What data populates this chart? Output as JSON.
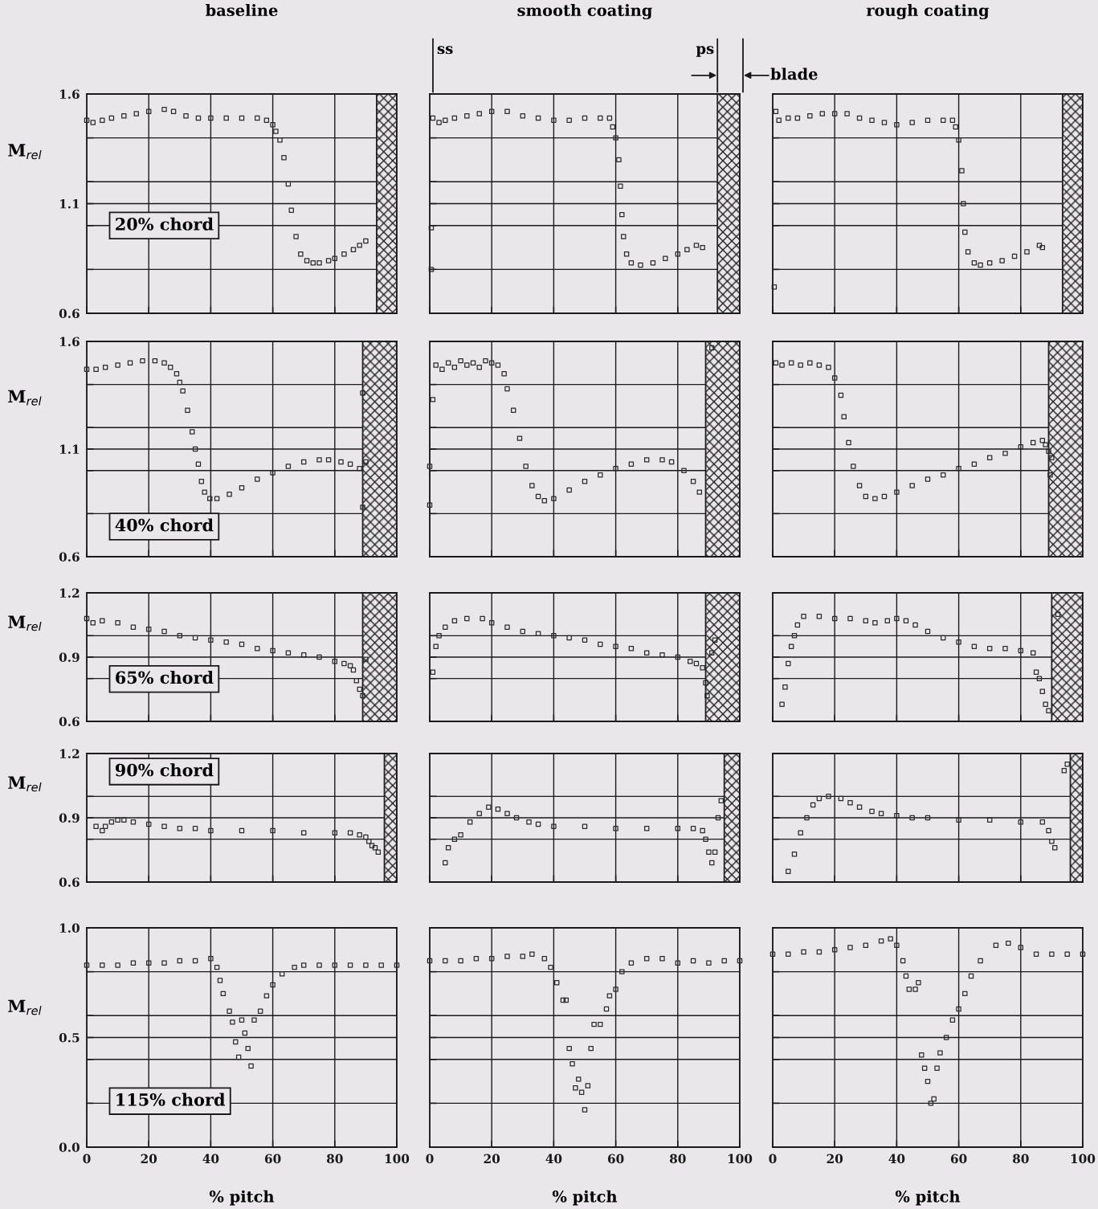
{
  "chart_data": [
    {
      "type": "scatter",
      "title": "baseline",
      "ylabel": "M$_{rel}$",
      "annotations": [
        "20% chord"
      ],
      "color": "#2a2a2a",
      "marker": "square",
      "grid": true,
      "tick_labels": "y",
      "xlim": [
        0,
        100
      ],
      "xticks": [
        0,
        20,
        40,
        60,
        80,
        100
      ],
      "ylim": [
        0.6,
        1.6
      ],
      "yticks": [
        0.6,
        {
          "value": 0.8,
          "label": null
        },
        {
          "value": 1.0,
          "label": null
        },
        1.1,
        {
          "value": 1.2,
          "label": null
        },
        {
          "value": 1.4,
          "label": null
        },
        1.6
      ],
      "bands": [
        {
          "axis": "x",
          "from": 93.5,
          "to": 100,
          "color": "#222222"
        }
      ],
      "x": [
        0,
        2,
        5,
        8,
        12,
        16,
        20,
        25,
        28,
        32,
        36,
        40,
        45,
        50,
        55,
        58,
        60,
        61,
        62.3,
        63.6,
        65,
        66,
        67.5,
        69,
        71,
        73,
        75,
        78,
        80,
        83,
        86,
        88,
        90
      ],
      "values": [
        1.48,
        1.47,
        1.48,
        1.49,
        1.5,
        1.51,
        1.52,
        1.53,
        1.52,
        1.5,
        1.49,
        1.49,
        1.49,
        1.49,
        1.49,
        1.48,
        1.46,
        1.43,
        1.39,
        1.31,
        1.19,
        1.07,
        0.95,
        0.87,
        0.84,
        0.83,
        0.83,
        0.84,
        0.85,
        0.87,
        0.89,
        0.91,
        0.93
      ]
    },
    {
      "type": "scatter",
      "title": "smooth coating",
      "annotations": [
        "ss",
        "ps",
        "blade"
      ],
      "color": "#2a2a2a",
      "marker": "square",
      "grid": true,
      "tick_labels": false,
      "xlim": [
        0,
        100
      ],
      "xticks": [
        0,
        20,
        40,
        60,
        80,
        100
      ],
      "ylim": [
        0.6,
        1.6
      ],
      "yticks": [
        0.6,
        {
          "value": 0.8,
          "label": null
        },
        {
          "value": 1.0,
          "label": null
        },
        1.1,
        {
          "value": 1.2,
          "label": null
        },
        {
          "value": 1.4,
          "label": null
        },
        1.6
      ],
      "bands": [
        {
          "axis": "x",
          "from": 92.8,
          "to": 100,
          "color": "#222222"
        }
      ],
      "x": [
        0.5,
        0.5,
        1,
        3,
        5,
        8,
        12,
        16,
        20,
        25,
        30,
        35,
        40,
        45,
        50,
        55,
        58,
        59,
        60,
        61,
        61.5,
        62,
        62.5,
        63.5,
        65,
        68,
        72,
        76,
        80,
        83,
        86,
        88
      ],
      "values": [
        0.99,
        0.8,
        1.49,
        1.47,
        1.48,
        1.49,
        1.5,
        1.51,
        1.52,
        1.52,
        1.5,
        1.49,
        1.48,
        1.48,
        1.49,
        1.49,
        1.49,
        1.45,
        1.4,
        1.3,
        1.18,
        1.05,
        0.95,
        0.87,
        0.83,
        0.82,
        0.83,
        0.85,
        0.87,
        0.89,
        0.91,
        0.9
      ]
    },
    {
      "type": "scatter",
      "title": "rough coating",
      "color": "#2a2a2a",
      "marker": "square",
      "grid": true,
      "tick_labels": false,
      "xlim": [
        0,
        100
      ],
      "xticks": [
        0,
        20,
        40,
        60,
        80,
        100
      ],
      "ylim": [
        0.6,
        1.6
      ],
      "yticks": [
        0.6,
        {
          "value": 0.8,
          "label": null
        },
        {
          "value": 1.0,
          "label": null
        },
        1.1,
        {
          "value": 1.2,
          "label": null
        },
        {
          "value": 1.4,
          "label": null
        },
        1.6
      ],
      "bands": [
        {
          "axis": "x",
          "from": 93.5,
          "to": 100,
          "color": "#222222"
        }
      ],
      "x": [
        0.5,
        1,
        2,
        5,
        8,
        12,
        16,
        20,
        24,
        28,
        32,
        36,
        40,
        45,
        50,
        55,
        58,
        59,
        60,
        61,
        61.5,
        62,
        63,
        65,
        67,
        70,
        74,
        78,
        82,
        86,
        87
      ],
      "values": [
        0.72,
        1.52,
        1.48,
        1.49,
        1.49,
        1.5,
        1.51,
        1.51,
        1.51,
        1.49,
        1.48,
        1.47,
        1.46,
        1.47,
        1.48,
        1.48,
        1.48,
        1.45,
        1.39,
        1.25,
        1.1,
        0.97,
        0.88,
        0.83,
        0.82,
        0.83,
        0.84,
        0.86,
        0.88,
        0.91,
        0.9
      ]
    },
    {
      "type": "scatter",
      "ylabel": "M$_{rel}$",
      "annotations": [
        "40% chord"
      ],
      "color": "#2a2a2a",
      "marker": "square",
      "grid": true,
      "tick_labels": "y",
      "xlim": [
        0,
        100
      ],
      "xticks": [
        0,
        20,
        40,
        60,
        80,
        100
      ],
      "ylim": [
        0.6,
        1.6
      ],
      "yticks": [
        0.6,
        {
          "value": 0.8,
          "label": null
        },
        {
          "value": 1.0,
          "label": null
        },
        1.1,
        {
          "value": 1.2,
          "label": null
        },
        {
          "value": 1.4,
          "label": null
        },
        1.6
      ],
      "bands": [
        {
          "axis": "x",
          "from": 89,
          "to": 100,
          "color": "#222222"
        }
      ],
      "x": [
        0,
        3,
        6,
        10,
        14,
        18,
        22,
        25,
        27,
        29,
        30,
        31,
        32.5,
        34,
        35,
        36,
        37,
        38,
        39.7,
        42,
        46,
        50,
        55,
        60,
        65,
        70,
        75,
        78,
        82,
        85,
        88,
        89,
        89,
        90
      ],
      "values": [
        1.47,
        1.47,
        1.48,
        1.49,
        1.5,
        1.51,
        1.51,
        1.5,
        1.48,
        1.45,
        1.41,
        1.37,
        1.28,
        1.18,
        1.1,
        1.03,
        0.95,
        0.9,
        0.87,
        0.87,
        0.89,
        0.92,
        0.96,
        0.99,
        1.02,
        1.04,
        1.05,
        1.05,
        1.04,
        1.03,
        1.01,
        1.36,
        0.83,
        1.04
      ]
    },
    {
      "type": "scatter",
      "color": "#2a2a2a",
      "marker": "square",
      "grid": true,
      "tick_labels": false,
      "xlim": [
        0,
        100
      ],
      "xticks": [
        0,
        20,
        40,
        60,
        80,
        100
      ],
      "ylim": [
        0.6,
        1.6
      ],
      "yticks": [
        0.6,
        {
          "value": 0.8,
          "label": null
        },
        {
          "value": 1.0,
          "label": null
        },
        1.1,
        {
          "value": 1.2,
          "label": null
        },
        {
          "value": 1.4,
          "label": null
        },
        1.6
      ],
      "bands": [
        {
          "axis": "x",
          "from": 89,
          "to": 100,
          "color": "#222222"
        }
      ],
      "x": [
        0,
        0,
        1,
        2,
        4,
        6,
        8,
        10,
        12,
        14,
        16,
        18,
        20,
        22,
        24,
        25,
        27,
        29,
        31,
        33,
        35,
        37,
        40,
        45,
        50,
        55,
        60,
        65,
        70,
        75,
        78,
        82,
        85,
        87,
        91
      ],
      "values": [
        0.84,
        1.02,
        1.33,
        1.49,
        1.47,
        1.5,
        1.48,
        1.51,
        1.49,
        1.5,
        1.48,
        1.51,
        1.5,
        1.49,
        1.45,
        1.38,
        1.28,
        1.15,
        1.02,
        0.93,
        0.88,
        0.86,
        0.87,
        0.91,
        0.95,
        0.98,
        1.01,
        1.03,
        1.05,
        1.05,
        1.04,
        1.0,
        0.95,
        0.9,
        1.57
      ]
    },
    {
      "type": "scatter",
      "color": "#2a2a2a",
      "marker": "square",
      "grid": true,
      "tick_labels": false,
      "xlim": [
        0,
        100
      ],
      "xticks": [
        0,
        20,
        40,
        60,
        80,
        100
      ],
      "ylim": [
        0.6,
        1.6
      ],
      "yticks": [
        0.6,
        {
          "value": 0.8,
          "label": null
        },
        {
          "value": 1.0,
          "label": null
        },
        1.1,
        {
          "value": 1.2,
          "label": null
        },
        {
          "value": 1.4,
          "label": null
        },
        1.6
      ],
      "bands": [
        {
          "axis": "x",
          "from": 89,
          "to": 100,
          "color": "#222222"
        }
      ],
      "x": [
        1,
        3,
        6,
        9,
        12,
        15,
        18,
        20,
        22,
        23,
        24.5,
        26,
        28,
        30,
        33,
        36,
        40,
        45,
        50,
        55,
        60,
        65,
        70,
        75,
        80,
        84,
        87,
        88,
        89,
        89.5,
        90
      ],
      "values": [
        1.5,
        1.49,
        1.5,
        1.49,
        1.5,
        1.49,
        1.48,
        1.43,
        1.35,
        1.25,
        1.13,
        1.02,
        0.93,
        0.88,
        0.87,
        0.88,
        0.9,
        0.93,
        0.96,
        0.98,
        1.01,
        1.03,
        1.06,
        1.08,
        1.11,
        1.13,
        1.14,
        1.12,
        1.09,
        0.98,
        1.06
      ]
    },
    {
      "type": "scatter",
      "ylabel": "M$_{rel}$",
      "annotations": [
        "65% chord"
      ],
      "color": "#2a2a2a",
      "marker": "square",
      "grid": true,
      "tick_labels": "y",
      "xlim": [
        0,
        100
      ],
      "xticks": [
        0,
        20,
        40,
        60,
        80,
        100
      ],
      "ylim": [
        0.6,
        1.2
      ],
      "yticks": [
        0.6,
        {
          "value": 0.8,
          "label": null
        },
        0.9,
        {
          "value": 1.0,
          "label": null
        },
        1.2
      ],
      "bands": [
        {
          "axis": "x",
          "from": 89,
          "to": 100,
          "color": "#222222"
        }
      ],
      "x": [
        0,
        2,
        5,
        10,
        15,
        20,
        25,
        30,
        35,
        40,
        45,
        50,
        55,
        60,
        65,
        70,
        75,
        80,
        83,
        85,
        86,
        87,
        88,
        89,
        90
      ],
      "values": [
        1.08,
        1.06,
        1.07,
        1.06,
        1.04,
        1.03,
        1.02,
        1.0,
        0.99,
        0.98,
        0.97,
        0.96,
        0.94,
        0.93,
        0.92,
        0.91,
        0.9,
        0.88,
        0.87,
        0.86,
        0.84,
        0.79,
        0.75,
        0.72,
        0.89
      ]
    },
    {
      "type": "scatter",
      "color": "#2a2a2a",
      "marker": "square",
      "grid": true,
      "tick_labels": false,
      "xlim": [
        0,
        100
      ],
      "xticks": [
        0,
        20,
        40,
        60,
        80,
        100
      ],
      "ylim": [
        0.6,
        1.2
      ],
      "yticks": [
        0.6,
        {
          "value": 0.8,
          "label": null
        },
        0.9,
        {
          "value": 1.0,
          "label": null
        },
        1.2
      ],
      "bands": [
        {
          "axis": "x",
          "from": 89,
          "to": 100,
          "color": "#222222"
        }
      ],
      "x": [
        1,
        2,
        3,
        5,
        8,
        12,
        17,
        20,
        25,
        30,
        35,
        40,
        45,
        50,
        55,
        60,
        65,
        70,
        75,
        80,
        84,
        86,
        88,
        89,
        89.5,
        91,
        92
      ],
      "values": [
        0.83,
        0.95,
        1.0,
        1.04,
        1.07,
        1.08,
        1.08,
        1.06,
        1.04,
        1.02,
        1.01,
        1.0,
        0.99,
        0.98,
        0.96,
        0.95,
        0.94,
        0.92,
        0.91,
        0.9,
        0.88,
        0.87,
        0.85,
        0.78,
        0.72,
        0.92,
        0.98
      ]
    },
    {
      "type": "scatter",
      "color": "#2a2a2a",
      "marker": "square",
      "grid": true,
      "tick_labels": false,
      "xlim": [
        0,
        100
      ],
      "xticks": [
        0,
        20,
        40,
        60,
        80,
        100
      ],
      "ylim": [
        0.6,
        1.2
      ],
      "yticks": [
        0.6,
        {
          "value": 0.8,
          "label": null
        },
        0.9,
        {
          "value": 1.0,
          "label": null
        },
        1.2
      ],
      "bands": [
        {
          "axis": "x",
          "from": 90,
          "to": 100,
          "color": "#222222"
        }
      ],
      "x": [
        3,
        4,
        5,
        6,
        7,
        8,
        10,
        15,
        20,
        25,
        30,
        33,
        37,
        40,
        43,
        46,
        50,
        55,
        60,
        65,
        70,
        75,
        80,
        84,
        85,
        86,
        87,
        88,
        89,
        92
      ],
      "values": [
        0.68,
        0.76,
        0.87,
        0.95,
        1.0,
        1.05,
        1.09,
        1.09,
        1.08,
        1.08,
        1.07,
        1.06,
        1.07,
        1.08,
        1.07,
        1.05,
        1.02,
        0.99,
        0.97,
        0.95,
        0.94,
        0.94,
        0.93,
        0.92,
        0.83,
        0.8,
        0.74,
        0.68,
        0.65,
        1.1
      ]
    },
    {
      "type": "scatter",
      "ylabel": "M$_{rel}$",
      "annotations": [
        "90% chord"
      ],
      "color": "#2a2a2a",
      "marker": "square",
      "grid": true,
      "tick_labels": "y",
      "xlim": [
        0,
        100
      ],
      "xticks": [
        0,
        20,
        40,
        60,
        80,
        100
      ],
      "ylim": [
        0.6,
        1.2
      ],
      "yticks": [
        0.6,
        {
          "value": 0.8,
          "label": null
        },
        0.9,
        {
          "value": 1.0,
          "label": null
        },
        1.2
      ],
      "bands": [
        {
          "axis": "x",
          "from": 96,
          "to": 100,
          "color": "#222222"
        }
      ],
      "x": [
        3,
        5,
        6,
        8,
        10,
        12,
        15,
        20,
        25,
        30,
        35,
        40,
        50,
        60,
        70,
        80,
        85,
        88,
        90,
        91,
        92,
        93,
        94
      ],
      "values": [
        0.86,
        0.84,
        0.86,
        0.88,
        0.89,
        0.89,
        0.88,
        0.87,
        0.86,
        0.85,
        0.85,
        0.84,
        0.84,
        0.84,
        0.83,
        0.83,
        0.83,
        0.82,
        0.81,
        0.79,
        0.77,
        0.76,
        0.74
      ]
    },
    {
      "type": "scatter",
      "color": "#2a2a2a",
      "marker": "square",
      "grid": true,
      "tick_labels": false,
      "xlim": [
        0,
        100
      ],
      "xticks": [
        0,
        20,
        40,
        60,
        80,
        100
      ],
      "ylim": [
        0.6,
        1.2
      ],
      "yticks": [
        0.6,
        {
          "value": 0.8,
          "label": null
        },
        0.9,
        {
          "value": 1.0,
          "label": null
        },
        1.2
      ],
      "bands": [
        {
          "axis": "x",
          "from": 95,
          "to": 100,
          "color": "#222222"
        }
      ],
      "x": [
        5,
        6,
        8,
        10,
        13,
        16,
        19,
        22,
        25,
        28,
        32,
        35,
        40,
        50,
        60,
        70,
        80,
        85,
        88,
        89,
        90,
        91,
        92,
        93,
        94
      ],
      "values": [
        0.69,
        0.76,
        0.8,
        0.82,
        0.88,
        0.92,
        0.95,
        0.94,
        0.92,
        0.9,
        0.88,
        0.87,
        0.86,
        0.86,
        0.85,
        0.85,
        0.85,
        0.85,
        0.84,
        0.8,
        0.74,
        0.69,
        0.74,
        0.9,
        0.98
      ]
    },
    {
      "type": "scatter",
      "color": "#2a2a2a",
      "marker": "square",
      "grid": true,
      "tick_labels": false,
      "xlim": [
        0,
        100
      ],
      "xticks": [
        0,
        20,
        40,
        60,
        80,
        100
      ],
      "ylim": [
        0.6,
        1.2
      ],
      "yticks": [
        0.6,
        {
          "value": 0.8,
          "label": null
        },
        0.9,
        {
          "value": 1.0,
          "label": null
        },
        1.2
      ],
      "bands": [
        {
          "axis": "x",
          "from": 96,
          "to": 100,
          "color": "#222222"
        }
      ],
      "x": [
        5,
        7,
        9,
        11,
        13,
        15,
        18,
        22,
        25,
        28,
        32,
        35,
        40,
        45,
        50,
        60,
        70,
        80,
        87,
        89,
        90,
        91,
        94,
        95
      ],
      "values": [
        0.65,
        0.73,
        0.83,
        0.9,
        0.96,
        0.99,
        1.0,
        0.99,
        0.97,
        0.95,
        0.93,
        0.92,
        0.91,
        0.9,
        0.9,
        0.89,
        0.89,
        0.88,
        0.88,
        0.84,
        0.79,
        0.76,
        1.12,
        1.15
      ]
    },
    {
      "type": "scatter",
      "ylabel": "M$_{rel}$",
      "xlabel": "% pitch",
      "annotations": [
        "115% chord"
      ],
      "color": "#2a2a2a",
      "marker": "square",
      "grid": true,
      "xlim": [
        0,
        100
      ],
      "xticks": [
        0,
        20,
        40,
        60,
        80,
        100
      ],
      "ylim": [
        0.0,
        1.0
      ],
      "yticks": [
        {
          "value": 0.0,
          "label": "0.0"
        },
        {
          "value": 0.2,
          "label": null
        },
        {
          "value": 0.4,
          "label": null
        },
        0.5,
        {
          "value": 0.6,
          "label": null
        },
        {
          "value": 0.8,
          "label": null
        },
        {
          "value": 1.0,
          "label": "1.0"
        }
      ],
      "x": [
        0,
        5,
        10,
        15,
        20,
        25,
        30,
        35,
        40,
        42,
        43,
        44,
        46,
        47,
        48,
        49,
        50,
        51,
        52,
        53,
        54,
        56,
        58,
        60,
        63,
        67,
        70,
        75,
        80,
        85,
        90,
        95,
        100
      ],
      "values": [
        0.83,
        0.83,
        0.83,
        0.84,
        0.84,
        0.84,
        0.85,
        0.85,
        0.86,
        0.82,
        0.76,
        0.7,
        0.62,
        0.57,
        0.48,
        0.41,
        0.58,
        0.52,
        0.45,
        0.37,
        0.58,
        0.62,
        0.69,
        0.74,
        0.79,
        0.82,
        0.83,
        0.83,
        0.83,
        0.83,
        0.83,
        0.83,
        0.83
      ]
    },
    {
      "type": "scatter",
      "xlabel": "% pitch",
      "color": "#2a2a2a",
      "marker": "square",
      "grid": true,
      "tick_labels": "x",
      "xlim": [
        0,
        100
      ],
      "xticks": [
        0,
        20,
        40,
        60,
        80,
        100
      ],
      "ylim": [
        0.0,
        1.0
      ],
      "yticks": [
        0.0,
        {
          "value": 0.2,
          "label": null
        },
        {
          "value": 0.4,
          "label": null
        },
        0.5,
        {
          "value": 0.6,
          "label": null
        },
        {
          "value": 0.8,
          "label": null
        },
        1.0
      ],
      "x": [
        0,
        5,
        10,
        15,
        20,
        25,
        30,
        33,
        37,
        39,
        41,
        43,
        44,
        45,
        46,
        47,
        48,
        49,
        50,
        51,
        52,
        53,
        55,
        57,
        58,
        60,
        62,
        65,
        70,
        75,
        80,
        85,
        90,
        95,
        100
      ],
      "values": [
        0.85,
        0.85,
        0.85,
        0.86,
        0.86,
        0.87,
        0.87,
        0.88,
        0.86,
        0.82,
        0.75,
        0.67,
        0.67,
        0.45,
        0.38,
        0.27,
        0.31,
        0.25,
        0.17,
        0.28,
        0.45,
        0.56,
        0.56,
        0.63,
        0.69,
        0.72,
        0.8,
        0.84,
        0.86,
        0.86,
        0.84,
        0.85,
        0.84,
        0.85,
        0.85
      ]
    },
    {
      "type": "scatter",
      "xlabel": "% pitch",
      "color": "#2a2a2a",
      "marker": "square",
      "grid": true,
      "tick_labels": "x",
      "xlim": [
        0,
        100
      ],
      "xticks": [
        0,
        20,
        40,
        60,
        80,
        100
      ],
      "ylim": [
        0.0,
        1.0
      ],
      "yticks": [
        0.0,
        {
          "value": 0.2,
          "label": null
        },
        {
          "value": 0.4,
          "label": null
        },
        0.5,
        {
          "value": 0.6,
          "label": null
        },
        {
          "value": 0.8,
          "label": null
        },
        1.0
      ],
      "x": [
        0,
        5,
        10,
        15,
        20,
        25,
        30,
        35,
        38,
        40,
        42,
        43,
        44,
        46,
        47,
        48,
        49,
        50,
        51,
        52,
        53,
        54,
        56,
        58,
        60,
        62,
        64,
        67,
        72,
        76,
        80,
        85,
        90,
        95,
        100
      ],
      "values": [
        0.88,
        0.88,
        0.89,
        0.89,
        0.9,
        0.91,
        0.92,
        0.94,
        0.95,
        0.92,
        0.85,
        0.78,
        0.72,
        0.72,
        0.75,
        0.42,
        0.36,
        0.3,
        0.2,
        0.22,
        0.36,
        0.43,
        0.5,
        0.58,
        0.63,
        0.7,
        0.78,
        0.85,
        0.92,
        0.93,
        0.91,
        0.88,
        0.88,
        0.88,
        0.88
      ]
    }
  ]
}
